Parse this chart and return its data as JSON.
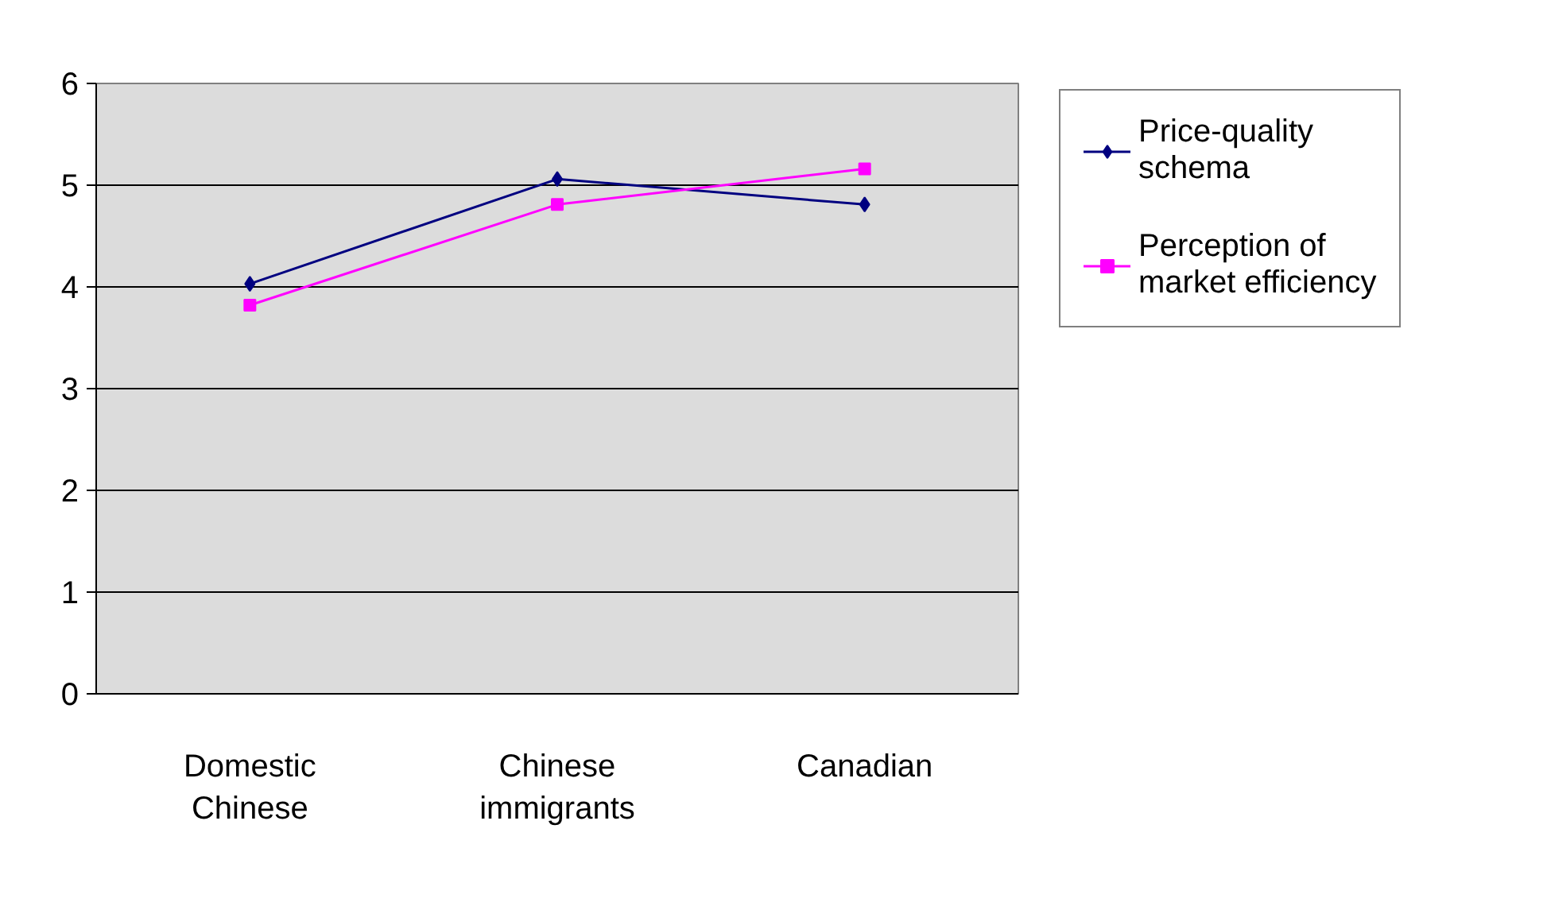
{
  "chart_data": {
    "type": "line",
    "categories": [
      "Domestic Chinese",
      "Chinese immigrants",
      "Canadian"
    ],
    "series": [
      {
        "name": "Price-quality schema",
        "color": "#000080",
        "values": [
          4.03,
          5.06,
          4.81
        ],
        "marker": "diamond"
      },
      {
        "name": "Perception of market efficiency",
        "color": "#ff00ff",
        "values": [
          3.82,
          4.81,
          5.16
        ],
        "marker": "square"
      }
    ],
    "ylim": [
      0,
      6
    ],
    "yticks": [
      0,
      1,
      2,
      3,
      4,
      5,
      6
    ],
    "grid": "y",
    "legend": "right"
  }
}
